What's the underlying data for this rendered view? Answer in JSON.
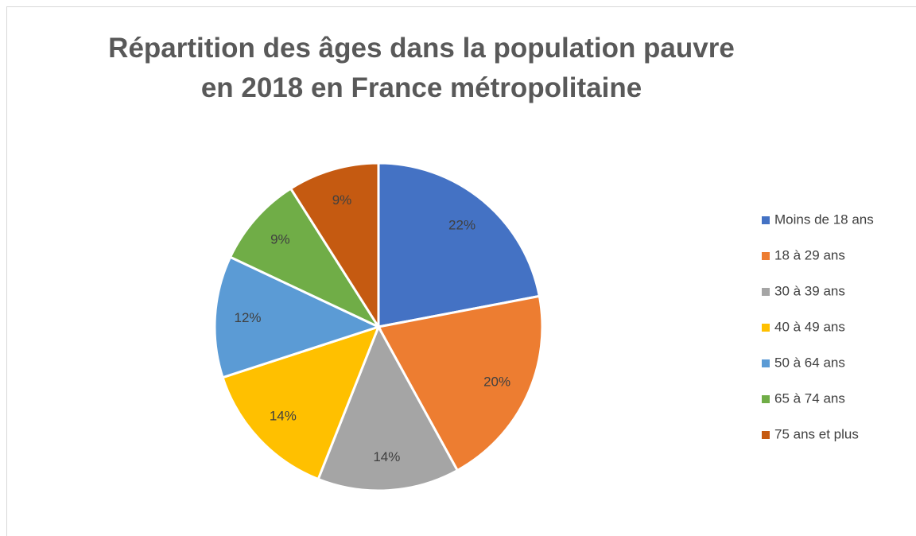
{
  "chart_data": {
    "type": "pie",
    "title": "Répartition des âges dans la population pauvre en 2018 en France métropolitaine",
    "categories": [
      "Moins de 18 ans",
      "18 à 29 ans",
      "30 à 39 ans",
      "40 à 49 ans",
      "50 à 64 ans",
      "65 à 74 ans",
      "75 ans et plus"
    ],
    "values": [
      22,
      20,
      14,
      14,
      12,
      9,
      9
    ],
    "value_labels": [
      "22%",
      "20%",
      "14%",
      "14%",
      "12%",
      "9%",
      "9%"
    ],
    "colors": [
      "#4472c4",
      "#ed7d31",
      "#a5a5a5",
      "#ffc000",
      "#5b9bd5",
      "#70ad47",
      "#c55a11"
    ],
    "legend": "right"
  }
}
